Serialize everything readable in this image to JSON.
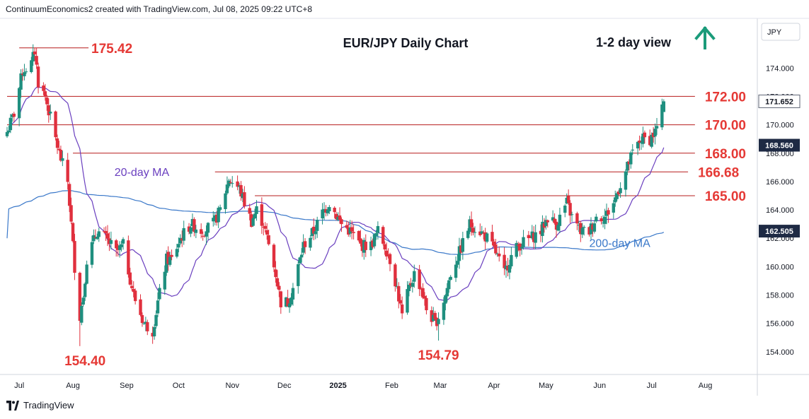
{
  "header": {
    "attribution": "ContinuumEconomics2 created with TradingView.com, Jul 08, 2025 09:22 UTC+8"
  },
  "footer": {
    "brand": "TradingView"
  },
  "colors": {
    "up": "#26a69a",
    "down": "#ef5350",
    "candle_body_up": "#1f8f7f",
    "candle_body_down": "#e0303e",
    "level_line": "#b71c1c",
    "level_text": "#e53935",
    "ma20": "#6a3fbf",
    "ma200": "#3a78c9",
    "arrow": "#1a9b7a",
    "axis_text": "#131722",
    "price_tag_bg": "#1e2a44"
  },
  "chart_data": {
    "type": "candlestick",
    "title": "EUR/JPY Daily Chart",
    "subtitle": "1-2 day view",
    "direction_icon": "up-arrow-icon",
    "currency": "JPY",
    "ylim": [
      152.4,
      177.4
    ],
    "y_ticks": [
      154,
      156,
      158,
      160,
      162,
      164,
      166,
      168,
      170,
      172,
      174
    ],
    "y_tick_labels": [
      "154.000",
      "156.000",
      "158.000",
      "160.000",
      "162.000",
      "164.000",
      "166.000",
      "168.000",
      "170.000",
      "172.000",
      "174.000"
    ],
    "x_labels": [
      "Jul",
      "Aug",
      "Sep",
      "Oct",
      "Nov",
      "Dec",
      "2025",
      "Feb",
      "Mar",
      "Apr",
      "May",
      "Jun",
      "Jul",
      "Aug"
    ],
    "x_range": [
      "2024-06-24",
      "2025-08-31"
    ],
    "x_label_dates": [
      "2024-07-01",
      "2024-08-01",
      "2024-09-01",
      "2024-10-01",
      "2024-11-01",
      "2024-12-01",
      "2025-01-01",
      "2025-02-01",
      "2025-03-01",
      "2025-04-01",
      "2025-05-01",
      "2025-06-01",
      "2025-07-01",
      "2025-08-01"
    ],
    "levels": [
      {
        "label": "175.42",
        "value": 175.42,
        "from": "2024-07-01",
        "to": "2024-08-10"
      },
      {
        "label": "172.00",
        "value": 172.0,
        "from": "2024-06-24",
        "to": "2025-07-26"
      },
      {
        "label": "170.00",
        "value": 170.0,
        "from": "2024-06-24",
        "to": "2025-07-26"
      },
      {
        "label": "168.00",
        "value": 168.0,
        "from": "2024-08-01",
        "to": "2025-07-26"
      },
      {
        "label": "166.68",
        "value": 166.68,
        "from": "2024-10-22",
        "to": "2025-07-22"
      },
      {
        "label": "165.00",
        "value": 165.0,
        "from": "2024-11-14",
        "to": "2025-07-26"
      }
    ],
    "annotations": [
      {
        "text": "154.40",
        "date": "2024-08-08",
        "value": 154.4
      },
      {
        "text": "154.79",
        "date": "2025-02-28",
        "value": 154.79
      },
      {
        "text": "20-day MA",
        "date": "2024-08-25",
        "value": 166.4
      },
      {
        "text": "200-day MA",
        "date": "2025-05-26",
        "value": 161.4
      }
    ],
    "price_tags": [
      {
        "label": "171.652",
        "value": 171.652,
        "kind": "last"
      },
      {
        "label": "168.560",
        "value": 168.56,
        "kind": "ma20"
      },
      {
        "label": "162.505",
        "value": 162.505,
        "kind": "ma200"
      }
    ],
    "close_anchors": [
      [
        "2024-06-24",
        169.5
      ],
      [
        "2024-06-28",
        170.8
      ],
      [
        "2024-07-03",
        173.8
      ],
      [
        "2024-07-08",
        174.3
      ],
      [
        "2024-07-10",
        175.2
      ],
      [
        "2024-07-12",
        173.0
      ],
      [
        "2024-07-16",
        172.0
      ],
      [
        "2024-07-19",
        170.5
      ],
      [
        "2024-07-24",
        168.0
      ],
      [
        "2024-07-29",
        166.0
      ],
      [
        "2024-07-31",
        163.0
      ],
      [
        "2024-08-02",
        160.0
      ],
      [
        "2024-08-05",
        156.5
      ],
      [
        "2024-08-07",
        158.0
      ],
      [
        "2024-08-09",
        160.5
      ],
      [
        "2024-08-15",
        162.5
      ],
      [
        "2024-08-20",
        162.0
      ],
      [
        "2024-08-26",
        161.0
      ],
      [
        "2024-08-30",
        161.5
      ],
      [
        "2024-09-05",
        158.0
      ],
      [
        "2024-09-11",
        156.0
      ],
      [
        "2024-09-16",
        155.5
      ],
      [
        "2024-09-19",
        157.5
      ],
      [
        "2024-09-24",
        160.5
      ],
      [
        "2024-09-27",
        160.5
      ],
      [
        "2024-10-02",
        162.0
      ],
      [
        "2024-10-08",
        163.0
      ],
      [
        "2024-10-15",
        162.5
      ],
      [
        "2024-10-21",
        163.0
      ],
      [
        "2024-10-25",
        164.0
      ],
      [
        "2024-10-30",
        166.2
      ],
      [
        "2024-11-05",
        165.5
      ],
      [
        "2024-11-08",
        164.5
      ],
      [
        "2024-11-12",
        163.2
      ],
      [
        "2024-11-15",
        164.0
      ],
      [
        "2024-11-19",
        163.0
      ],
      [
        "2024-11-22",
        161.5
      ],
      [
        "2024-11-26",
        159.5
      ],
      [
        "2024-11-29",
        157.5
      ],
      [
        "2024-12-03",
        157.5
      ],
      [
        "2024-12-06",
        158.5
      ],
      [
        "2024-12-12",
        161.5
      ],
      [
        "2024-12-18",
        162.5
      ],
      [
        "2024-12-23",
        163.8
      ],
      [
        "2024-12-27",
        164.5
      ],
      [
        "2025-01-03",
        163.0
      ],
      [
        "2025-01-08",
        162.5
      ],
      [
        "2025-01-14",
        161.5
      ],
      [
        "2025-01-20",
        161.5
      ],
      [
        "2025-01-24",
        162.5
      ],
      [
        "2025-01-28",
        161.5
      ],
      [
        "2025-01-31",
        160.5
      ],
      [
        "2025-02-04",
        158.5
      ],
      [
        "2025-02-07",
        156.5
      ],
      [
        "2025-02-11",
        158.5
      ],
      [
        "2025-02-14",
        159.5
      ],
      [
        "2025-02-18",
        158.5
      ],
      [
        "2025-02-21",
        157.0
      ],
      [
        "2025-02-26",
        156.0
      ],
      [
        "2025-02-28",
        156.5
      ],
      [
        "2025-03-04",
        158.0
      ],
      [
        "2025-03-07",
        159.5
      ],
      [
        "2025-03-12",
        161.0
      ],
      [
        "2025-03-18",
        163.0
      ],
      [
        "2025-03-24",
        162.5
      ],
      [
        "2025-03-28",
        162.0
      ],
      [
        "2025-04-02",
        161.0
      ],
      [
        "2025-04-07",
        159.5
      ],
      [
        "2025-04-10",
        160.5
      ],
      [
        "2025-04-15",
        161.5
      ],
      [
        "2025-04-22",
        162.0
      ],
      [
        "2025-04-28",
        162.5
      ],
      [
        "2025-05-02",
        163.5
      ],
      [
        "2025-05-07",
        163.0
      ],
      [
        "2025-05-13",
        164.5
      ],
      [
        "2025-05-16",
        163.5
      ],
      [
        "2025-05-21",
        162.5
      ],
      [
        "2025-05-26",
        162.5
      ],
      [
        "2025-05-30",
        163.5
      ],
      [
        "2025-06-04",
        163.5
      ],
      [
        "2025-06-09",
        164.5
      ],
      [
        "2025-06-12",
        165.5
      ],
      [
        "2025-06-17",
        167.0
      ],
      [
        "2025-06-20",
        168.0
      ],
      [
        "2025-06-25",
        169.0
      ],
      [
        "2025-06-30",
        169.0
      ],
      [
        "2025-07-03",
        169.5
      ],
      [
        "2025-07-07",
        171.0
      ],
      [
        "2025-07-08",
        171.652
      ]
    ]
  }
}
